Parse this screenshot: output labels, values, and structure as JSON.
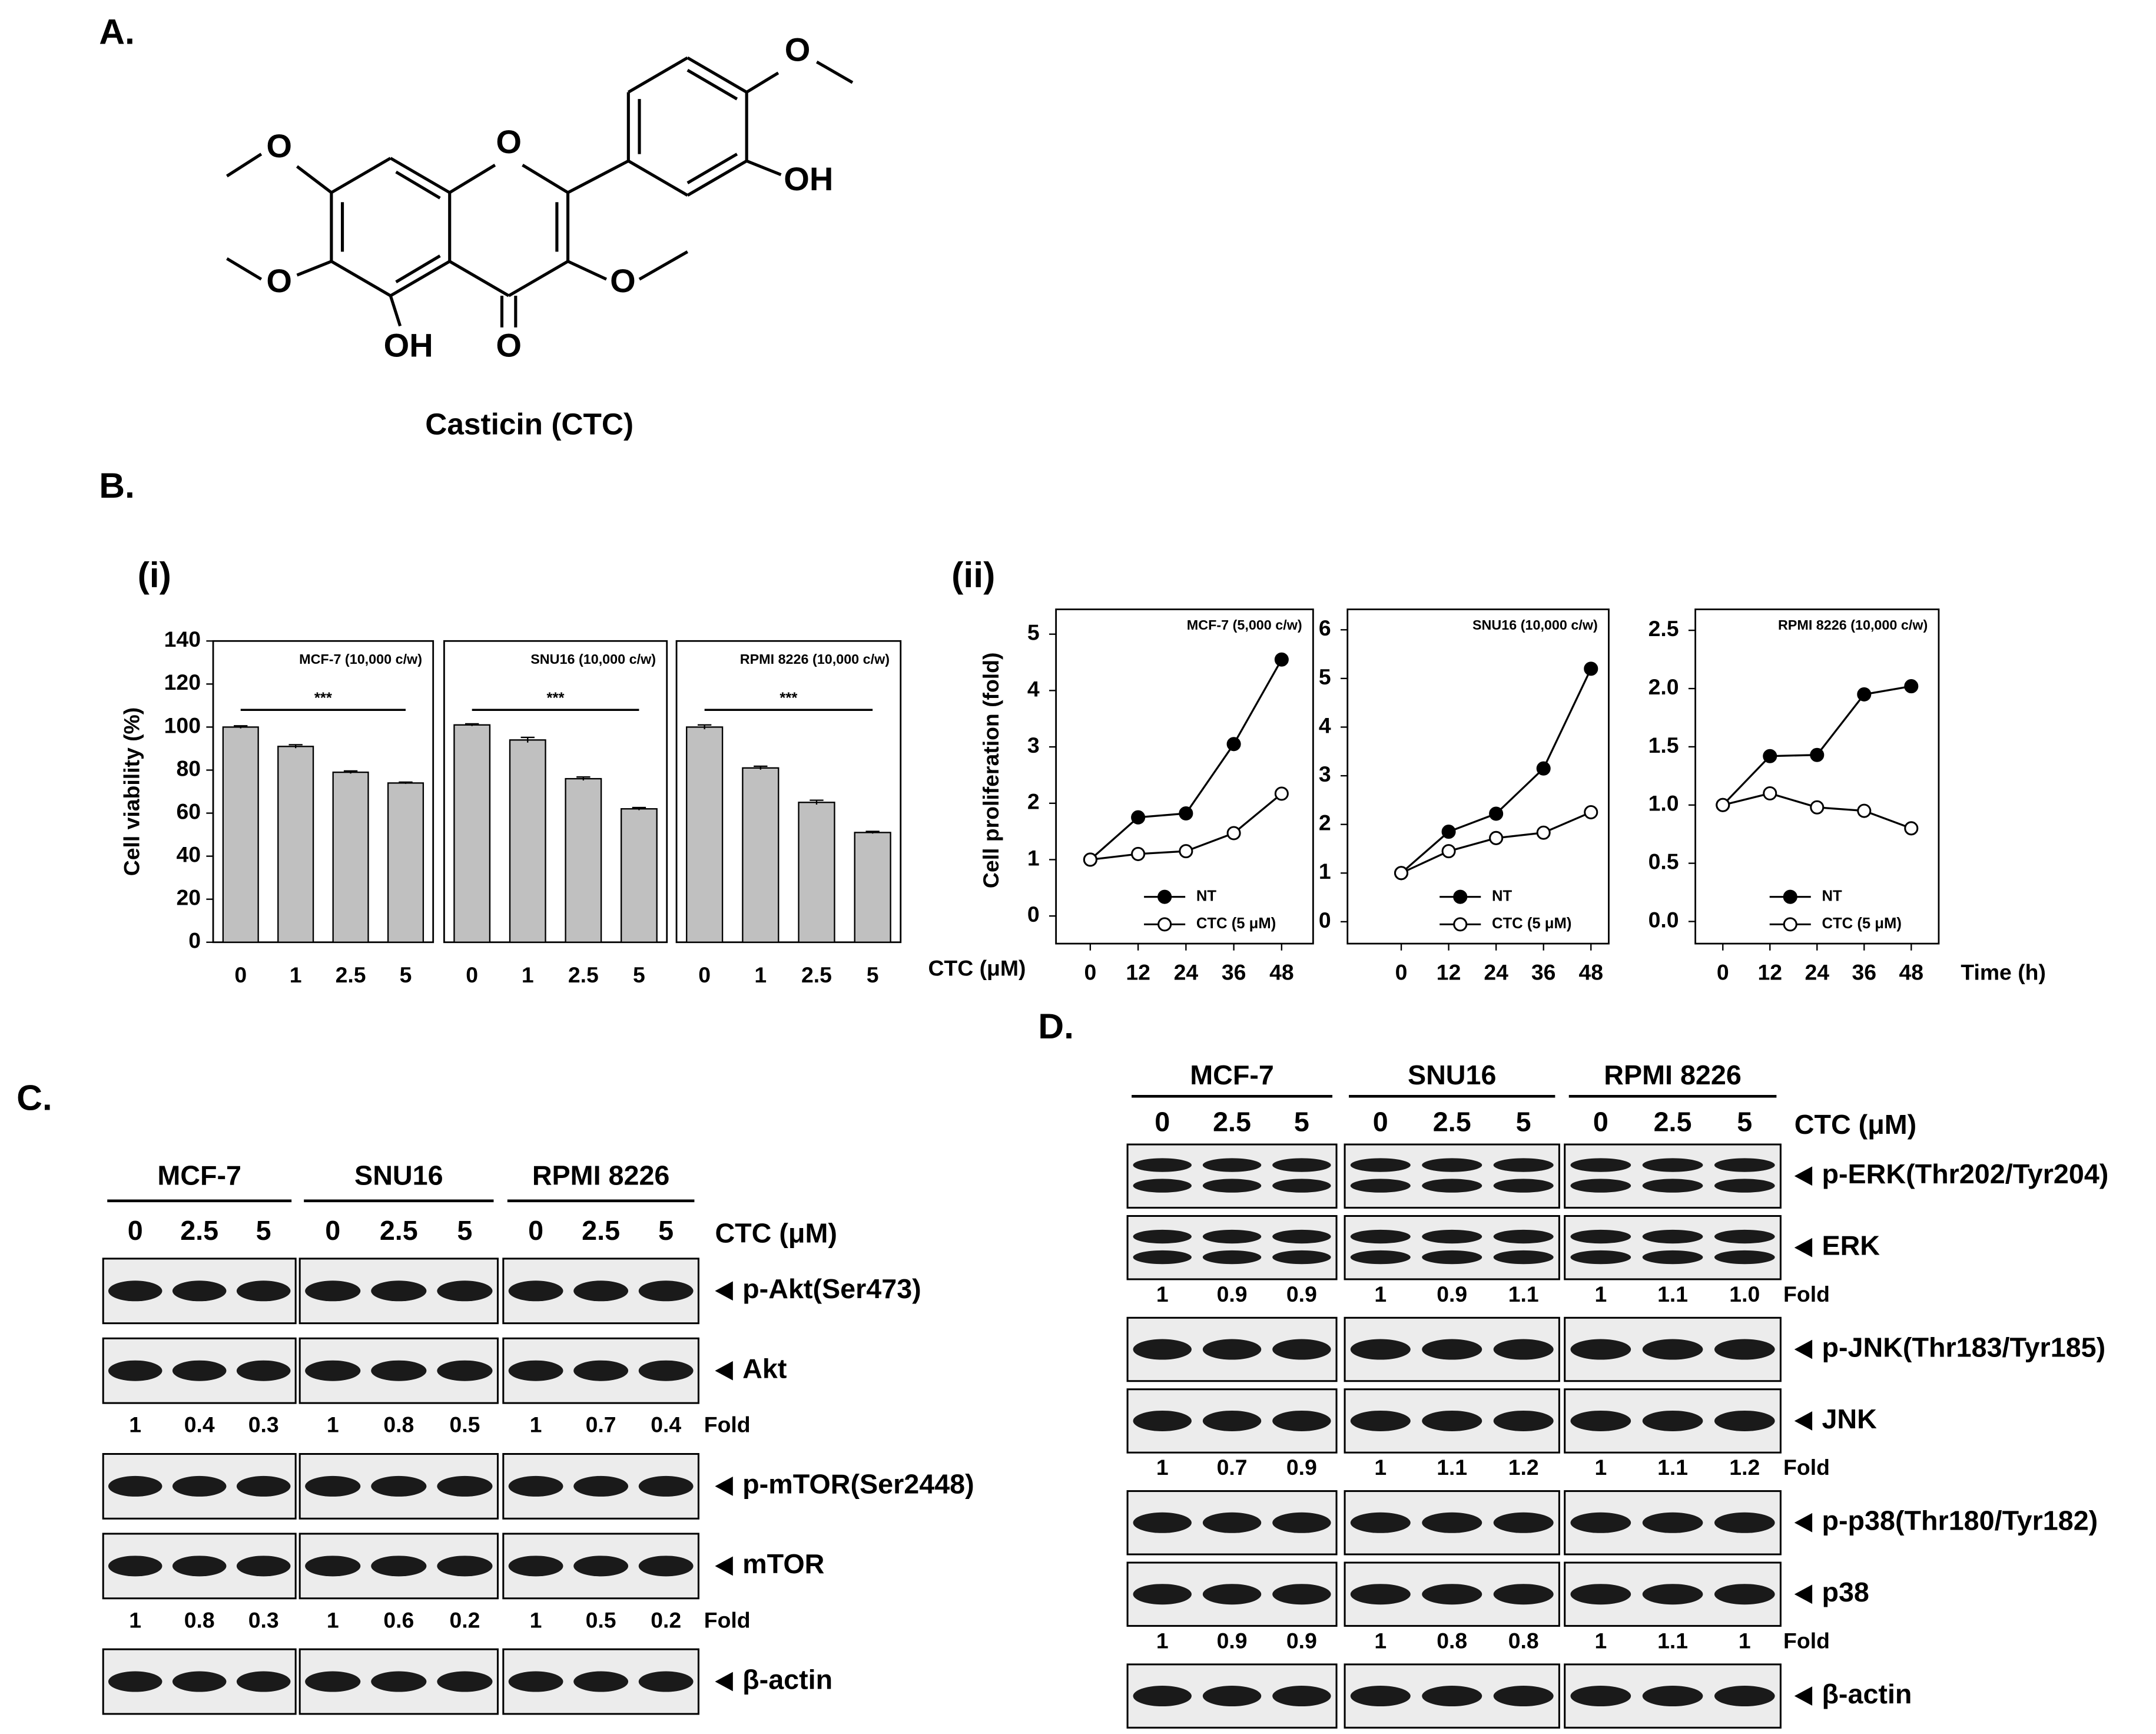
{
  "panel_labels": [
    "A.",
    "B.",
    "C.",
    "D."
  ],
  "subpanel_labels": [
    "(i)",
    "(ii)"
  ],
  "structure": {
    "atoms": [
      "O",
      "OH",
      "O",
      "O",
      "O",
      "O",
      "OH",
      "O"
    ],
    "name": "Casticin (CTC)"
  },
  "chart_data": [
    {
      "type": "bar",
      "title": "MCF-7 (10,000 c/w)",
      "categories": [
        "0",
        "1",
        "2.5",
        "5"
      ],
      "values": [
        100,
        91,
        79,
        74
      ],
      "errors": [
        0.6,
        0.8,
        0.6,
        0.4
      ],
      "color": "#c0c0c0",
      "ylim": [
        0,
        140
      ],
      "yticks": [
        0,
        20,
        40,
        60,
        80,
        100,
        120,
        140
      ],
      "y_label": "Cell viability (%)",
      "annotation": "***"
    },
    {
      "type": "bar",
      "title": "SNU16 (10,000 c/w)",
      "categories": [
        "0",
        "1",
        "2.5",
        "5"
      ],
      "values": [
        101,
        94,
        76,
        62
      ],
      "errors": [
        0.5,
        1.2,
        0.8,
        0.6
      ],
      "color": "#c0c0c0",
      "ylim": [
        0,
        140
      ],
      "annotation": "***"
    },
    {
      "type": "bar",
      "title": "RPMI 8226 (10,000 c/w)",
      "categories": [
        "0",
        "1",
        "2.5",
        "5"
      ],
      "values": [
        100,
        81,
        65,
        51
      ],
      "errors": [
        1.0,
        0.8,
        1.0,
        0.5
      ],
      "color": "#c0c0c0",
      "ylim": [
        0,
        140
      ],
      "annotation": "***",
      "x_label": "CTC (μM)"
    },
    {
      "type": "line",
      "title": "MCF-7 (5,000 c/w)",
      "x": [
        0,
        12,
        24,
        36,
        48
      ],
      "xlim": [
        -8.6,
        55.9
      ],
      "xticks": [
        0,
        12,
        24,
        36,
        48
      ],
      "ylim": [
        -0.49,
        5.44
      ],
      "yticks": [
        0,
        1,
        2,
        3,
        4,
        5
      ],
      "y_label": "Cell proliferation (fold)",
      "series": [
        {
          "name": "NT",
          "color": "#000000",
          "marker_fill": "#000000",
          "values": [
            1,
            1.75,
            1.82,
            3.05,
            4.55
          ]
        },
        {
          "name": "CTC (5 μM)",
          "color": "#000000",
          "marker_fill": "#ffffff",
          "values": [
            1,
            1.1,
            1.15,
            1.47,
            2.17
          ]
        }
      ]
    },
    {
      "type": "line",
      "title": "SNU16 (10,000 c/w)",
      "x": [
        0,
        12,
        24,
        36,
        48
      ],
      "xlim": [
        -13.6,
        52.5
      ],
      "xticks": [
        0,
        12,
        24,
        36,
        48
      ],
      "ylim": [
        -0.45,
        6.42
      ],
      "yticks": [
        0,
        1,
        2,
        3,
        4,
        5,
        6
      ],
      "series": [
        {
          "name": "NT",
          "color": "#000000",
          "marker_fill": "#000000",
          "values": [
            1,
            1.85,
            2.22,
            3.15,
            5.2
          ]
        },
        {
          "name": "CTC (5 μM)",
          "color": "#000000",
          "marker_fill": "#ffffff",
          "values": [
            1,
            1.45,
            1.72,
            1.83,
            2.25
          ]
        }
      ]
    },
    {
      "type": "line",
      "title": "RPMI 8226 (10,000 c/w)",
      "x": [
        0,
        12,
        24,
        36,
        48
      ],
      "xlim": [
        -7,
        55
      ],
      "xticks": [
        0,
        12,
        24,
        36,
        48
      ],
      "ylim": [
        -0.19,
        2.68
      ],
      "yticks": [
        {
          "value": 0,
          "label": "0.0"
        },
        0.5,
        {
          "value": 1,
          "label": "1.0"
        },
        1.5,
        {
          "value": 2,
          "label": "2.0"
        },
        2.5
      ],
      "x_label": "Time (h)",
      "series": [
        {
          "name": "NT",
          "color": "#000000",
          "marker_fill": "#000000",
          "values": [
            1,
            1.42,
            1.43,
            1.95,
            2.02
          ]
        },
        {
          "name": "CTC (5 μM)",
          "color": "#000000",
          "marker_fill": "#ffffff",
          "values": [
            1,
            1.1,
            0.98,
            0.95,
            0.8
          ]
        }
      ]
    }
  ],
  "blot_c": {
    "cell_lines": [
      "MCF-7",
      "SNU16",
      "RPMI 8226"
    ],
    "doses": [
      "0",
      "2.5",
      "5"
    ],
    "dose_label": "CTC (μM)",
    "fold_label": "Fold",
    "rows": [
      {
        "label": "p-Akt(Ser473)"
      },
      {
        "label": "Akt",
        "fold": [
          [
            "1",
            "0.4",
            "0.3"
          ],
          [
            "1",
            "0.8",
            "0.5"
          ],
          [
            "1",
            "0.7",
            "0.4"
          ]
        ]
      },
      {
        "label": "p-mTOR(Ser2448)"
      },
      {
        "label": "mTOR",
        "fold": [
          [
            "1",
            "0.8",
            "0.3"
          ],
          [
            "1",
            "0.6",
            "0.2"
          ],
          [
            "1",
            "0.5",
            "0.2"
          ]
        ]
      },
      {
        "label": "β-actin"
      }
    ]
  },
  "blot_d": {
    "cell_lines": [
      "MCF-7",
      "SNU16",
      "RPMI 8226"
    ],
    "doses": [
      "0",
      "2.5",
      "5"
    ],
    "dose_label": "CTC (μM)",
    "fold_label": "Fold",
    "rows": [
      {
        "label": "p-ERK(Thr202/Tyr204)"
      },
      {
        "label": "ERK",
        "fold": [
          [
            "1",
            "0.9",
            "0.9"
          ],
          [
            "1",
            "0.9",
            "1.1"
          ],
          [
            "1",
            "1.1",
            "1.0"
          ]
        ]
      },
      {
        "label": "p-JNK(Thr183/Tyr185)"
      },
      {
        "label": "JNK",
        "fold": [
          [
            "1",
            "0.7",
            "0.9"
          ],
          [
            "1",
            "1.1",
            "1.2"
          ],
          [
            "1",
            "1.1",
            "1.2"
          ]
        ]
      },
      {
        "label": "p-p38(Thr180/Tyr182)"
      },
      {
        "label": "p38",
        "fold": [
          [
            "1",
            "0.9",
            "0.9"
          ],
          [
            "1",
            "0.8",
            "0.8"
          ],
          [
            "1",
            "1.1",
            "1"
          ]
        ]
      },
      {
        "label": "β-actin"
      }
    ]
  }
}
